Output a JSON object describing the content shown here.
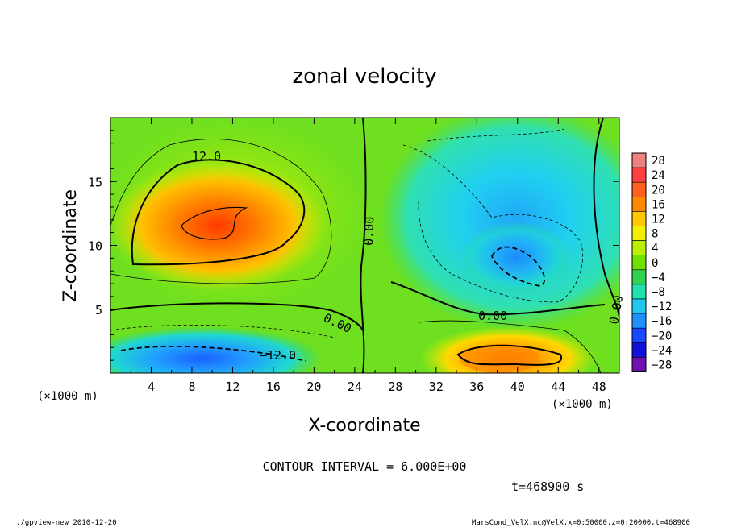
{
  "chart_data": {
    "type": "heatmap",
    "title": "zonal velocity",
    "xlabel": "X-coordinate",
    "ylabel": "Z-coordinate",
    "x_unit": "(×1000 m)",
    "y_unit": "(×1000 m)",
    "xlim": [
      0,
      50
    ],
    "ylim": [
      0,
      20
    ],
    "x_ticks": [
      "4",
      "8",
      "12",
      "16",
      "20",
      "24",
      "28",
      "32",
      "36",
      "40",
      "44",
      "48"
    ],
    "y_ticks": [
      "5",
      "10",
      "15"
    ],
    "colorbar": {
      "levels": [
        "28",
        "24",
        "20",
        "16",
        "12",
        "8",
        "4",
        "0",
        "−4",
        "−8",
        "−12",
        "−16",
        "−20",
        "−24",
        "−28"
      ],
      "colors": [
        "#f08080",
        "#ff4040",
        "#ff6020",
        "#ff8a00",
        "#ffc800",
        "#f0f000",
        "#b8f000",
        "#70e000",
        "#30d050",
        "#20e0b0",
        "#20c8f0",
        "#2090ff",
        "#1848ff",
        "#1010d8",
        "#7010b0"
      ]
    },
    "contour_labels": [
      "12.0",
      "0.00",
      "0.00",
      "0.00",
      "0.00",
      "−12.0"
    ],
    "features": [
      {
        "name": "max-west-upper",
        "x": 10,
        "z": 11.5,
        "value": 19
      },
      {
        "name": "min-west-lower",
        "x": 10,
        "z": 1,
        "value": -17
      },
      {
        "name": "min-east-upper",
        "x": 40,
        "z": 8.5,
        "value": -12
      },
      {
        "name": "max-east-lower",
        "x": 39.5,
        "z": 1.2,
        "value": 17
      }
    ]
  },
  "footer": {
    "contour_interval": "CONTOUR INTERVAL = 6.000E+00",
    "time": "t=468900  s",
    "program": "./gpview-new   2010-12-20",
    "source": "MarsCond_VelX.nc@VelX,x=0:50000,z=0:20000,t=468900"
  }
}
